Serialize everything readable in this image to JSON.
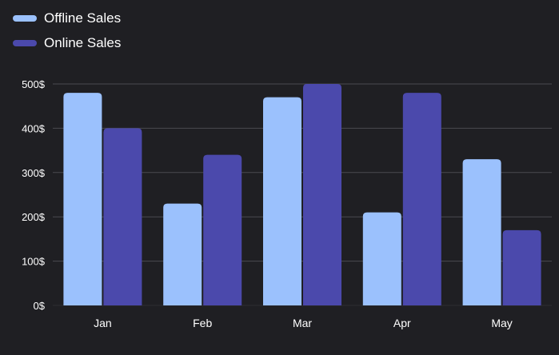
{
  "chart_data": {
    "type": "bar",
    "categories": [
      "Jan",
      "Feb",
      "Mar",
      "Apr",
      "May"
    ],
    "series": [
      {
        "name": "Offline Sales",
        "color": "#9bc1fd",
        "values": [
          480,
          230,
          470,
          210,
          330
        ]
      },
      {
        "name": "Online Sales",
        "color": "#4b49ac",
        "values": [
          400,
          340,
          500,
          480,
          170
        ]
      }
    ],
    "y_ticks": [
      "0$",
      "100$",
      "200$",
      "300$",
      "400$",
      "500$"
    ],
    "ylim": [
      0,
      500
    ],
    "grid": true,
    "legend_position": "top-left"
  }
}
